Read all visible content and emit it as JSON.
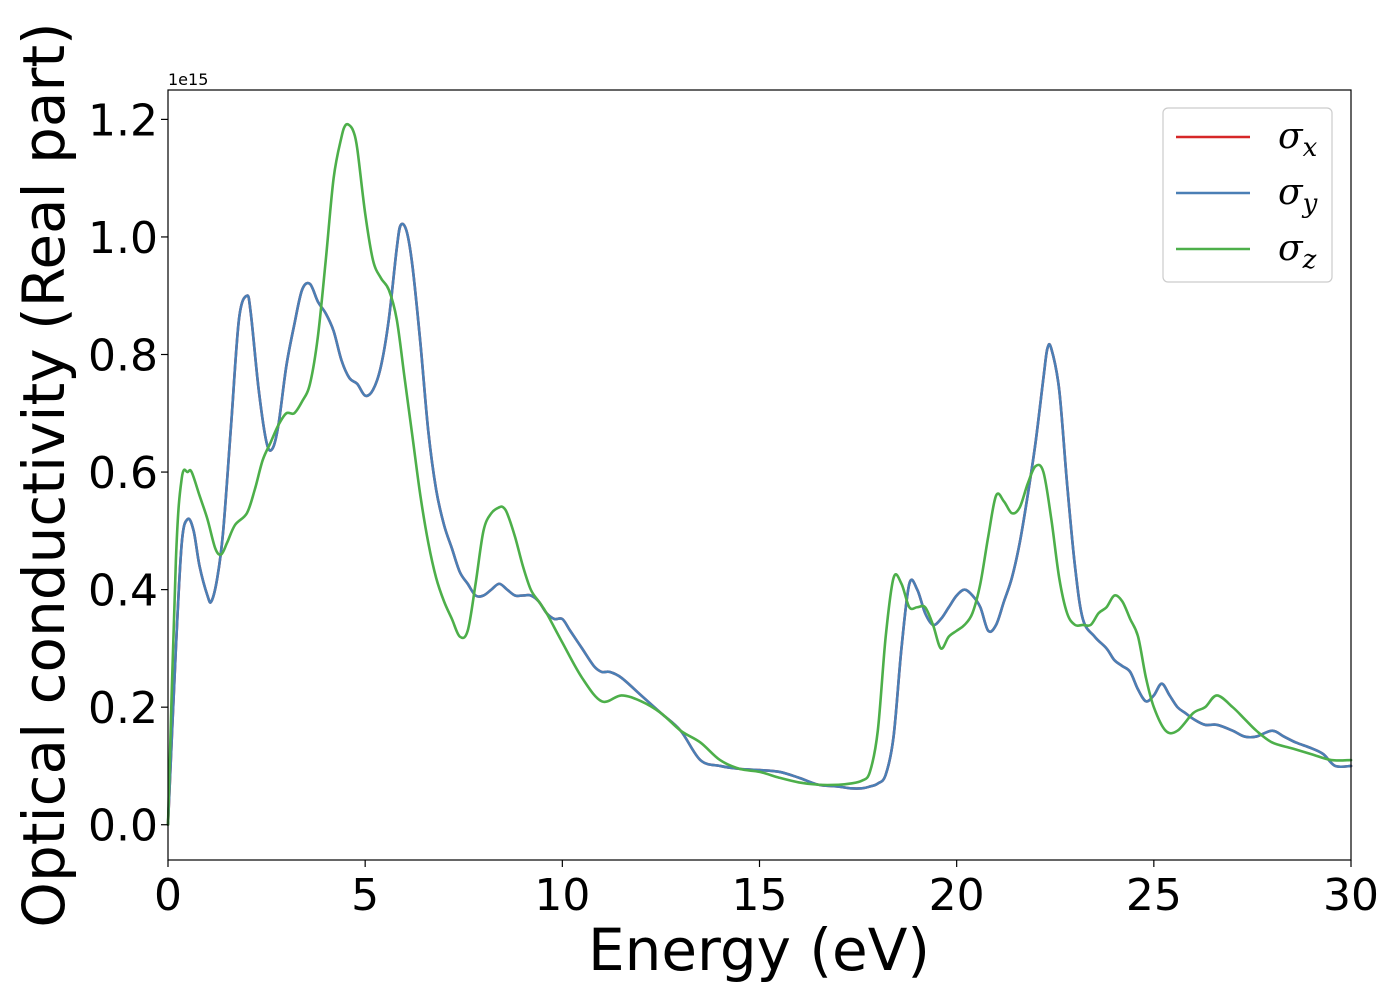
{
  "chart_data": {
    "type": "line",
    "xlabel": "Energy (eV)",
    "ylabel": "Optical conductivity (Real part)",
    "y_offset_label": "1e15",
    "xlim": [
      0,
      30
    ],
    "ylim": [
      -0.06,
      1.25
    ],
    "xticks": [
      "0",
      "5",
      "10",
      "15",
      "20",
      "25",
      "30"
    ],
    "yticks": [
      "0.0",
      "0.2",
      "0.4",
      "0.6",
      "0.8",
      "1.0",
      "1.2"
    ],
    "grid": false,
    "legend_position": "top-right",
    "series": [
      {
        "name": "σx",
        "name_base": "σ",
        "name_sub": "x",
        "color": "#d62728",
        "x": [
          0,
          0.2,
          0.35,
          0.5,
          0.65,
          0.8,
          1.0,
          1.1,
          1.25,
          1.4,
          1.6,
          1.8,
          2.0,
          2.1,
          2.3,
          2.5,
          2.65,
          2.8,
          3.0,
          3.2,
          3.4,
          3.6,
          3.8,
          4.0,
          4.2,
          4.4,
          4.6,
          4.8,
          5.0,
          5.2,
          5.4,
          5.6,
          5.8,
          5.9,
          6.05,
          6.2,
          6.4,
          6.6,
          6.8,
          7.0,
          7.2,
          7.4,
          7.6,
          7.8,
          8.0,
          8.2,
          8.4,
          8.6,
          8.8,
          9.0,
          9.2,
          9.4,
          9.6,
          9.8,
          10.0,
          10.2,
          10.5,
          10.8,
          11.0,
          11.2,
          11.5,
          12.0,
          12.5,
          13.0,
          13.5,
          14.0,
          14.5,
          15.0,
          15.5,
          16.0,
          16.5,
          17.0,
          17.3,
          17.6,
          17.8,
          18.0,
          18.2,
          18.4,
          18.6,
          18.8,
          19.0,
          19.2,
          19.4,
          19.6,
          19.8,
          20.0,
          20.2,
          20.4,
          20.6,
          20.8,
          21.0,
          21.2,
          21.4,
          21.6,
          21.8,
          22.0,
          22.2,
          22.3,
          22.4,
          22.6,
          22.8,
          23.0,
          23.2,
          23.5,
          23.8,
          24.0,
          24.2,
          24.4,
          24.6,
          24.8,
          25.0,
          25.2,
          25.4,
          25.6,
          25.8,
          26.0,
          26.3,
          26.6,
          27.0,
          27.3,
          27.6,
          28.0,
          28.3,
          28.6,
          29.0,
          29.3,
          29.6,
          30.0
        ],
        "y": [
          0.0,
          0.3,
          0.48,
          0.52,
          0.5,
          0.44,
          0.39,
          0.38,
          0.42,
          0.5,
          0.68,
          0.86,
          0.9,
          0.87,
          0.74,
          0.65,
          0.64,
          0.68,
          0.78,
          0.85,
          0.91,
          0.92,
          0.89,
          0.87,
          0.84,
          0.79,
          0.76,
          0.75,
          0.73,
          0.74,
          0.78,
          0.86,
          0.98,
          1.02,
          1.01,
          0.95,
          0.82,
          0.67,
          0.57,
          0.51,
          0.47,
          0.43,
          0.41,
          0.39,
          0.39,
          0.4,
          0.41,
          0.4,
          0.39,
          0.39,
          0.39,
          0.38,
          0.36,
          0.35,
          0.35,
          0.33,
          0.3,
          0.27,
          0.26,
          0.26,
          0.25,
          0.22,
          0.19,
          0.16,
          0.11,
          0.1,
          0.095,
          0.093,
          0.09,
          0.08,
          0.068,
          0.065,
          0.062,
          0.062,
          0.065,
          0.07,
          0.085,
          0.15,
          0.3,
          0.41,
          0.4,
          0.36,
          0.34,
          0.35,
          0.37,
          0.39,
          0.4,
          0.39,
          0.37,
          0.33,
          0.34,
          0.38,
          0.42,
          0.48,
          0.56,
          0.65,
          0.76,
          0.81,
          0.81,
          0.74,
          0.58,
          0.44,
          0.35,
          0.32,
          0.3,
          0.28,
          0.27,
          0.26,
          0.23,
          0.21,
          0.22,
          0.24,
          0.22,
          0.2,
          0.19,
          0.18,
          0.17,
          0.17,
          0.16,
          0.15,
          0.15,
          0.16,
          0.15,
          0.14,
          0.13,
          0.12,
          0.1,
          0.1
        ]
      },
      {
        "name": "σy",
        "name_base": "σ",
        "name_sub": "y",
        "color": "#4a7fb5",
        "x": [
          0,
          0.2,
          0.35,
          0.5,
          0.65,
          0.8,
          1.0,
          1.1,
          1.25,
          1.4,
          1.6,
          1.8,
          2.0,
          2.1,
          2.3,
          2.5,
          2.65,
          2.8,
          3.0,
          3.2,
          3.4,
          3.6,
          3.8,
          4.0,
          4.2,
          4.4,
          4.6,
          4.8,
          5.0,
          5.2,
          5.4,
          5.6,
          5.8,
          5.9,
          6.05,
          6.2,
          6.4,
          6.6,
          6.8,
          7.0,
          7.2,
          7.4,
          7.6,
          7.8,
          8.0,
          8.2,
          8.4,
          8.6,
          8.8,
          9.0,
          9.2,
          9.4,
          9.6,
          9.8,
          10.0,
          10.2,
          10.5,
          10.8,
          11.0,
          11.2,
          11.5,
          12.0,
          12.5,
          13.0,
          13.5,
          14.0,
          14.5,
          15.0,
          15.5,
          16.0,
          16.5,
          17.0,
          17.3,
          17.6,
          17.8,
          18.0,
          18.2,
          18.4,
          18.6,
          18.8,
          19.0,
          19.2,
          19.4,
          19.6,
          19.8,
          20.0,
          20.2,
          20.4,
          20.6,
          20.8,
          21.0,
          21.2,
          21.4,
          21.6,
          21.8,
          22.0,
          22.2,
          22.3,
          22.4,
          22.6,
          22.8,
          23.0,
          23.2,
          23.5,
          23.8,
          24.0,
          24.2,
          24.4,
          24.6,
          24.8,
          25.0,
          25.2,
          25.4,
          25.6,
          25.8,
          26.0,
          26.3,
          26.6,
          27.0,
          27.3,
          27.6,
          28.0,
          28.3,
          28.6,
          29.0,
          29.3,
          29.6,
          30.0
        ],
        "y": [
          0.0,
          0.3,
          0.48,
          0.52,
          0.5,
          0.44,
          0.39,
          0.38,
          0.42,
          0.5,
          0.68,
          0.86,
          0.9,
          0.87,
          0.74,
          0.65,
          0.64,
          0.68,
          0.78,
          0.85,
          0.91,
          0.92,
          0.89,
          0.87,
          0.84,
          0.79,
          0.76,
          0.75,
          0.73,
          0.74,
          0.78,
          0.86,
          0.98,
          1.02,
          1.01,
          0.95,
          0.82,
          0.67,
          0.57,
          0.51,
          0.47,
          0.43,
          0.41,
          0.39,
          0.39,
          0.4,
          0.41,
          0.4,
          0.39,
          0.39,
          0.39,
          0.38,
          0.36,
          0.35,
          0.35,
          0.33,
          0.3,
          0.27,
          0.26,
          0.26,
          0.25,
          0.22,
          0.19,
          0.16,
          0.11,
          0.1,
          0.095,
          0.093,
          0.09,
          0.08,
          0.068,
          0.065,
          0.062,
          0.062,
          0.065,
          0.07,
          0.085,
          0.15,
          0.3,
          0.41,
          0.4,
          0.36,
          0.34,
          0.35,
          0.37,
          0.39,
          0.4,
          0.39,
          0.37,
          0.33,
          0.34,
          0.38,
          0.42,
          0.48,
          0.56,
          0.65,
          0.76,
          0.81,
          0.81,
          0.74,
          0.58,
          0.44,
          0.35,
          0.32,
          0.3,
          0.28,
          0.27,
          0.26,
          0.23,
          0.21,
          0.22,
          0.24,
          0.22,
          0.2,
          0.19,
          0.18,
          0.17,
          0.17,
          0.16,
          0.15,
          0.15,
          0.16,
          0.15,
          0.14,
          0.13,
          0.12,
          0.1,
          0.1
        ]
      },
      {
        "name": "σz",
        "name_base": "σ",
        "name_sub": "z",
        "color": "#4daf4a",
        "x": [
          0,
          0.2,
          0.35,
          0.5,
          0.6,
          0.8,
          1.0,
          1.2,
          1.35,
          1.5,
          1.7,
          2.0,
          2.2,
          2.4,
          2.6,
          2.8,
          3.0,
          3.2,
          3.4,
          3.6,
          3.8,
          4.0,
          4.2,
          4.4,
          4.5,
          4.6,
          4.7,
          4.8,
          5.0,
          5.2,
          5.4,
          5.6,
          5.8,
          6.0,
          6.2,
          6.4,
          6.6,
          6.8,
          7.0,
          7.2,
          7.4,
          7.6,
          7.8,
          8.0,
          8.2,
          8.4,
          8.5,
          8.6,
          8.8,
          9.0,
          9.2,
          9.4,
          9.6,
          10.0,
          10.5,
          11.0,
          11.5,
          12.0,
          12.5,
          13.0,
          13.5,
          14.0,
          14.5,
          15.0,
          15.5,
          16.0,
          16.5,
          17.0,
          17.3,
          17.6,
          17.8,
          18.0,
          18.2,
          18.4,
          18.6,
          18.8,
          19.0,
          19.2,
          19.4,
          19.6,
          19.8,
          20.0,
          20.2,
          20.4,
          20.6,
          20.8,
          21.0,
          21.2,
          21.4,
          21.6,
          21.8,
          22.0,
          22.2,
          22.4,
          22.6,
          22.8,
          23.0,
          23.2,
          23.4,
          23.6,
          23.8,
          24.0,
          24.2,
          24.4,
          24.6,
          24.8,
          25.0,
          25.3,
          25.6,
          26.0,
          26.3,
          26.6,
          27.0,
          27.3,
          27.6,
          28.0,
          28.5,
          29.0,
          29.5,
          30.0
        ],
        "y": [
          0.0,
          0.45,
          0.59,
          0.6,
          0.6,
          0.56,
          0.52,
          0.47,
          0.46,
          0.48,
          0.51,
          0.53,
          0.57,
          0.62,
          0.65,
          0.68,
          0.7,
          0.7,
          0.72,
          0.75,
          0.83,
          0.96,
          1.1,
          1.17,
          1.19,
          1.19,
          1.18,
          1.15,
          1.04,
          0.96,
          0.93,
          0.91,
          0.86,
          0.76,
          0.66,
          0.56,
          0.48,
          0.42,
          0.38,
          0.35,
          0.32,
          0.33,
          0.41,
          0.5,
          0.53,
          0.54,
          0.54,
          0.53,
          0.49,
          0.44,
          0.4,
          0.38,
          0.36,
          0.31,
          0.25,
          0.21,
          0.22,
          0.21,
          0.19,
          0.16,
          0.14,
          0.11,
          0.095,
          0.09,
          0.08,
          0.072,
          0.068,
          0.068,
          0.07,
          0.075,
          0.09,
          0.16,
          0.32,
          0.42,
          0.41,
          0.37,
          0.37,
          0.37,
          0.34,
          0.3,
          0.32,
          0.33,
          0.34,
          0.36,
          0.41,
          0.49,
          0.56,
          0.55,
          0.53,
          0.54,
          0.58,
          0.61,
          0.6,
          0.52,
          0.42,
          0.36,
          0.34,
          0.34,
          0.34,
          0.36,
          0.37,
          0.39,
          0.38,
          0.35,
          0.32,
          0.25,
          0.2,
          0.16,
          0.16,
          0.19,
          0.2,
          0.22,
          0.2,
          0.18,
          0.16,
          0.14,
          0.13,
          0.12,
          0.11,
          0.11
        ]
      }
    ]
  }
}
